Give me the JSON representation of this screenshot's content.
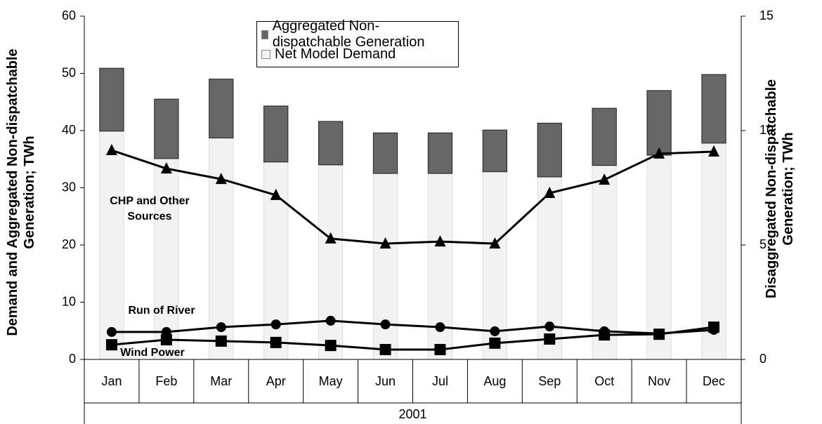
{
  "chart_data": {
    "type": "combo",
    "categories": [
      "Jan",
      "Feb",
      "Mar",
      "Apr",
      "May",
      "Jun",
      "Jul",
      "Aug",
      "Sep",
      "Oct",
      "Nov",
      "Dec"
    ],
    "x_group_label": "2001",
    "ylabel": "Demand and Aggregated Non-dispatchable Generation; TWh",
    "y2label": "Disaggregated Non-dispatchable Generation; TWh",
    "ylim": [
      0,
      60
    ],
    "yticks": [
      0,
      10,
      20,
      30,
      40,
      50,
      60
    ],
    "y2lim": [
      0,
      15
    ],
    "y2ticks": [
      0,
      5,
      10,
      15
    ],
    "grid": false,
    "bar_series": [
      {
        "name": "Net Model Demand",
        "color": "#f2f2f2",
        "values": [
          39.9,
          35.1,
          38.7,
          34.5,
          34.0,
          32.5,
          32.5,
          32.8,
          31.9,
          33.9,
          35.7,
          37.8
        ]
      },
      {
        "name": "Aggregated Non-dispatchable Generation",
        "color": "#666666",
        "values": [
          11.0,
          10.4,
          10.3,
          9.8,
          7.6,
          7.1,
          7.1,
          7.3,
          9.4,
          10.0,
          11.3,
          12.0
        ]
      }
    ],
    "line_series": [
      {
        "name": "CHP and Other Sources",
        "axis": "y2",
        "color": "#000000",
        "marker": "triangle",
        "values": [
          9.14,
          8.34,
          7.88,
          7.18,
          5.28,
          5.06,
          5.15,
          5.06,
          7.27,
          7.85,
          8.99,
          9.08
        ]
      },
      {
        "name": "Run of River",
        "axis": "y2",
        "color": "#000000",
        "marker": "circle",
        "values": [
          1.2,
          1.2,
          1.41,
          1.53,
          1.69,
          1.53,
          1.41,
          1.23,
          1.44,
          1.23,
          1.13,
          1.29
        ]
      },
      {
        "name": "Wind Power",
        "axis": "y2",
        "color": "#000000",
        "marker": "square",
        "values": [
          0.64,
          0.86,
          0.8,
          0.74,
          0.61,
          0.43,
          0.43,
          0.71,
          0.89,
          1.07,
          1.1,
          1.41
        ]
      }
    ]
  }
}
